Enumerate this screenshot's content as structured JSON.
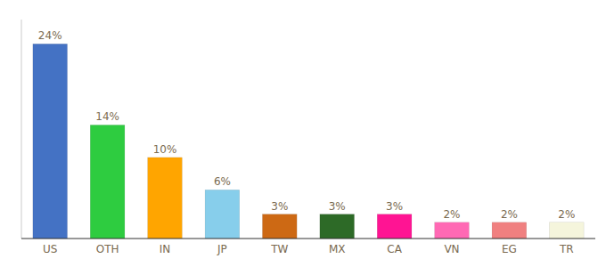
{
  "chart_data": {
    "type": "bar",
    "categories": [
      "US",
      "OTH",
      "IN",
      "JP",
      "TW",
      "MX",
      "CA",
      "VN",
      "EG",
      "TR"
    ],
    "values": [
      24,
      14,
      10,
      6,
      3,
      3,
      3,
      2,
      2,
      2
    ],
    "value_labels": [
      "24%",
      "14%",
      "10%",
      "6%",
      "3%",
      "3%",
      "3%",
      "2%",
      "2%",
      "2%"
    ],
    "colors": [
      "#4472C4",
      "#2ECC40",
      "#FFA500",
      "#87CEEB",
      "#CD6914",
      "#2D6A27",
      "#FF1493",
      "#FF69B4",
      "#F08080",
      "#F5F5DC"
    ],
    "ylim": [
      0,
      27
    ],
    "grid": false,
    "data_labels": true,
    "tick_labels": "x"
  }
}
